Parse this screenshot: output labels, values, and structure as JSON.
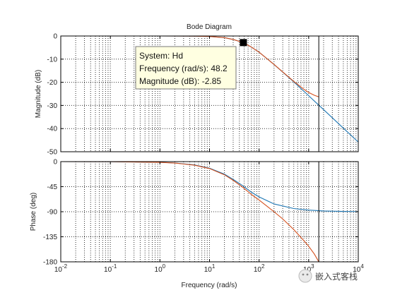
{
  "chart_data": {
    "type": "line",
    "title": "Bode Diagram",
    "xlabel": "Frequency  (rad/s)",
    "x_scale": "log",
    "xlim": [
      0.01,
      10000
    ],
    "x_ticks": [
      {
        "value": 0.01,
        "base": "10",
        "exp": "-2"
      },
      {
        "value": 0.1,
        "base": "10",
        "exp": "-1"
      },
      {
        "value": 1,
        "base": "10",
        "exp": "0"
      },
      {
        "value": 10,
        "base": "10",
        "exp": "1"
      },
      {
        "value": 100,
        "base": "10",
        "exp": "2"
      },
      {
        "value": 1000,
        "base": "10",
        "exp": "3"
      },
      {
        "value": 10000,
        "base": "10",
        "exp": "4"
      }
    ],
    "grid": true,
    "vertical_marker_x": 1600,
    "panels": [
      {
        "id": "magnitude",
        "ylabel": "Magnitude (dB)",
        "ylim": [
          -50,
          0
        ],
        "yticks": [
          0,
          -10,
          -20,
          -30,
          -40,
          -50
        ],
        "series": [
          {
            "color": "#1f77b4",
            "x": [
              0.01,
              0.1,
              1,
              5,
              10,
              20,
              30,
              48.2,
              70,
              100,
              200,
              500,
              1000,
              1600,
              2000,
              5000,
              10000
            ],
            "y": [
              0,
              0,
              0,
              -0.05,
              -0.2,
              -0.7,
              -1.5,
              -2.85,
              -4.8,
              -7.0,
              -12.3,
              -19.8,
              -25.8,
              -29.9,
              -31.8,
              -39.8,
              -45.8
            ]
          },
          {
            "color": "#d44f1c",
            "x": [
              0.01,
              0.1,
              1,
              5,
              10,
              20,
              30,
              48.2,
              70,
              100,
              200,
              500,
              800,
              1000,
              1300,
              1600
            ],
            "y": [
              0,
              0,
              0,
              -0.05,
              -0.2,
              -0.7,
              -1.5,
              -2.85,
              -4.8,
              -7.0,
              -12.3,
              -19.6,
              -23.0,
              -24.4,
              -25.6,
              -26.3
            ]
          }
        ]
      },
      {
        "id": "phase",
        "ylabel": "Phase (deg)",
        "ylim": [
          -180,
          0
        ],
        "yticks": [
          0,
          -45,
          -90,
          -135,
          -180
        ],
        "series": [
          {
            "color": "#1f77b4",
            "x": [
              0.01,
              0.1,
              1,
              2,
              5,
              10,
              20,
              30,
              48.2,
              70,
              100,
              200,
              500,
              1000,
              2000,
              5000,
              10000
            ],
            "y": [
              0,
              -0.1,
              -1.2,
              -2.4,
              -5.9,
              -11.8,
              -22.5,
              -31.9,
              -44.1,
              -55.0,
              -63.4,
              -76.0,
              -84.3,
              -87.1,
              -88.6,
              -89.4,
              -89.7
            ]
          },
          {
            "color": "#d44f1c",
            "x": [
              0.01,
              0.1,
              1,
              2,
              5,
              10,
              20,
              30,
              48.2,
              70,
              100,
              200,
              300,
              500,
              800,
              1000,
              1300,
              1600
            ],
            "y": [
              0,
              -0.1,
              -1.3,
              -2.6,
              -6.4,
              -12.4,
              -23.7,
              -33.6,
              -47.0,
              -59.0,
              -69.0,
              -90.0,
              -103.0,
              -122.0,
              -142.0,
              -152.0,
              -166.0,
              -180.0
            ]
          }
        ]
      }
    ],
    "datatip": {
      "lines": [
        "System: Hd",
        "Frequency (rad/s): 48.2",
        "Magnitude (dB): -2.85"
      ],
      "x": 48.2,
      "y": -2.85
    }
  },
  "watermark": "嵌入式客栈"
}
